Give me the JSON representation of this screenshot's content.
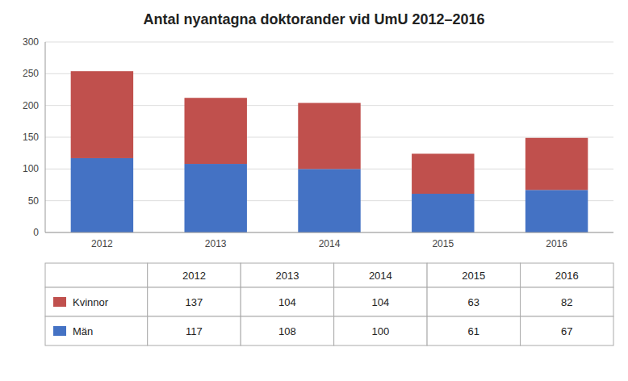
{
  "chart_data": {
    "type": "bar",
    "title": "Antal nyantagna doktorander vid UmU 2012–2016",
    "categories": [
      "2012",
      "2013",
      "2014",
      "2015",
      "2016"
    ],
    "series": [
      {
        "name": "Män",
        "color": "#4472C4",
        "values": [
          117,
          108,
          100,
          61,
          67
        ]
      },
      {
        "name": "Kvinnor",
        "color": "#C0504D",
        "values": [
          137,
          104,
          104,
          63,
          82
        ]
      }
    ],
    "stacked": true,
    "ylim": [
      0,
      300
    ],
    "yticks": [
      0,
      50,
      100,
      150,
      200,
      250,
      300
    ],
    "grid": true,
    "legend": "bottom"
  }
}
